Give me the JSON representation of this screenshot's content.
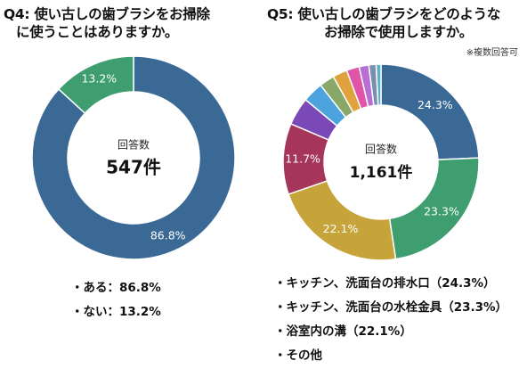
{
  "q4": {
    "title_line1": "Q4: 使い古しの歯ブラシをお掃除",
    "title_line2": "に使うことはありますか。",
    "center_label": "回答数",
    "center_value": "547件",
    "bullets": [
      "・ある：86.8%",
      "・ない：13.2%"
    ]
  },
  "q5": {
    "title_line1": "Q5: 使い古しの歯ブラシをどのような",
    "title_line2": "お掃除で使用しますか。",
    "note": "※複数回答可",
    "center_label": "回答数",
    "center_value": "1,161件",
    "bullets": [
      "・キッチン、洗面台の排水口（24.3%）",
      "・キッチン、洗面台の水栓金具（23.3%）",
      "・浴室内の溝（22.1%）",
      "・その他"
    ]
  },
  "chart_data": [
    {
      "type": "pie",
      "title": "Q4: 使い古しの歯ブラシをお掃除に使うことはありますか。",
      "total": 547,
      "slices": [
        {
          "value": 86.8,
          "label": "86.8%",
          "color": "#3a6996"
        },
        {
          "value": 13.2,
          "label": "13.2%",
          "color": "#3e9e6f"
        }
      ]
    },
    {
      "type": "pie",
      "title": "Q5: 使い古しの歯ブラシをどのようなお掃除で使用しますか。",
      "total": 1161,
      "slices": [
        {
          "value": 24.3,
          "label": "24.3%",
          "color": "#3a6996"
        },
        {
          "value": 23.3,
          "label": "23.3%",
          "color": "#3e9e6f"
        },
        {
          "value": 22.1,
          "label": "22.1%",
          "color": "#c6a43a"
        },
        {
          "value": 11.7,
          "label": "11.7%",
          "color": "#a5355b"
        },
        {
          "value": 4.6,
          "label": "",
          "color": "#7b48b8"
        },
        {
          "value": 3.4,
          "label": "",
          "color": "#4da3dd"
        },
        {
          "value": 2.5,
          "label": "",
          "color": "#88a86a"
        },
        {
          "value": 2.4,
          "label": "",
          "color": "#e0a23c"
        },
        {
          "value": 2.1,
          "label": "",
          "color": "#e055a8"
        },
        {
          "value": 1.6,
          "label": "",
          "color": "#b76fd6"
        },
        {
          "value": 1.2,
          "label": "",
          "color": "#7a8fb0"
        },
        {
          "value": 0.8,
          "label": "",
          "color": "#5ab0c8"
        }
      ]
    }
  ]
}
